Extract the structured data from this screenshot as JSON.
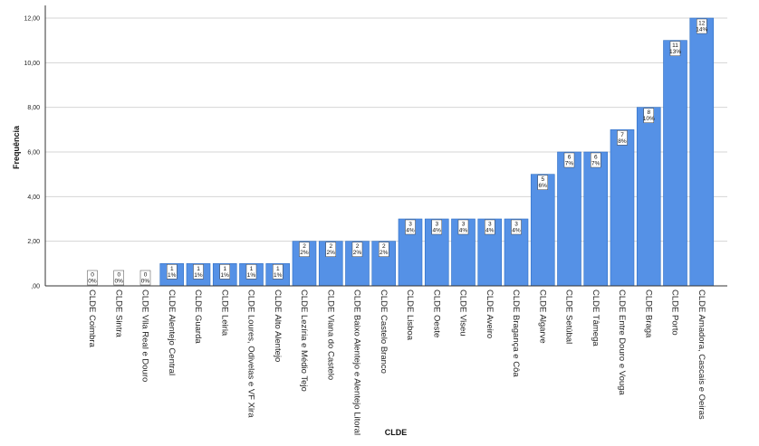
{
  "chart_data": {
    "type": "bar",
    "title": "",
    "xlabel": "CLDE",
    "ylabel": "Frequência",
    "ylim": [
      0,
      12
    ],
    "yticks": [
      ",00",
      "2,00",
      "4,00",
      "6,00",
      "8,00",
      "10,00",
      "12,00"
    ],
    "grid": true,
    "colors": {
      "bar": "#5591e6",
      "bar_edge": "#2f6fc4",
      "grid": "#d4d4d4",
      "axis": "#333333"
    },
    "categories": [
      "CLDE Coimbra",
      "CLDE Sintra",
      "CLDE Vila Real e Douro",
      "CLDE Alentejo Central",
      "CLDE Guarda",
      "CLDE Leiria",
      "CLDE Loures, Odivelas e VF Xira",
      "CLDE Alto Alentejo",
      "CLDE Lezíria e Médio Tejo",
      "CLDE Viana do Castelo",
      "CLDE Baixo Alentejo e Alentejo Litoral",
      "CLDE Castelo Branco",
      "CLDE Lisboa",
      "CLDE Oeste",
      "CLDE Viseu",
      "CLDE Aveiro",
      "CLDE Bragança e Côa",
      "CLDE Algarve",
      "CLDE Setúbal",
      "CLDE Tâmega",
      "CLDE Entre Douro e Vouga",
      "CLDE Braga",
      "CLDE Porto",
      "CLDE Amadora, Cascais e Oeiras"
    ],
    "values": [
      0,
      0,
      0,
      1,
      1,
      1,
      1,
      1,
      2,
      2,
      2,
      2,
      3,
      3,
      3,
      3,
      3,
      5,
      6,
      6,
      7,
      8,
      11,
      12
    ],
    "data_labels": [
      [
        "0",
        "0%"
      ],
      [
        "0",
        "0%"
      ],
      [
        "0",
        "0%"
      ],
      [
        "1",
        "1%"
      ],
      [
        "1",
        "1%"
      ],
      [
        "1",
        "1%"
      ],
      [
        "1",
        "1%"
      ],
      [
        "1",
        "1%"
      ],
      [
        "2",
        "2%"
      ],
      [
        "2",
        "2%"
      ],
      [
        "2",
        "2%"
      ],
      [
        "2",
        "2%"
      ],
      [
        "3",
        "4%"
      ],
      [
        "3",
        "4%"
      ],
      [
        "3",
        "4%"
      ],
      [
        "3",
        "4%"
      ],
      [
        "3",
        "4%"
      ],
      [
        "5",
        "6%"
      ],
      [
        "6",
        "7%"
      ],
      [
        "6",
        "7%"
      ],
      [
        "7",
        "8%"
      ],
      [
        "8",
        "10%"
      ],
      [
        "11",
        "13%"
      ],
      [
        "12",
        "14%"
      ]
    ]
  }
}
